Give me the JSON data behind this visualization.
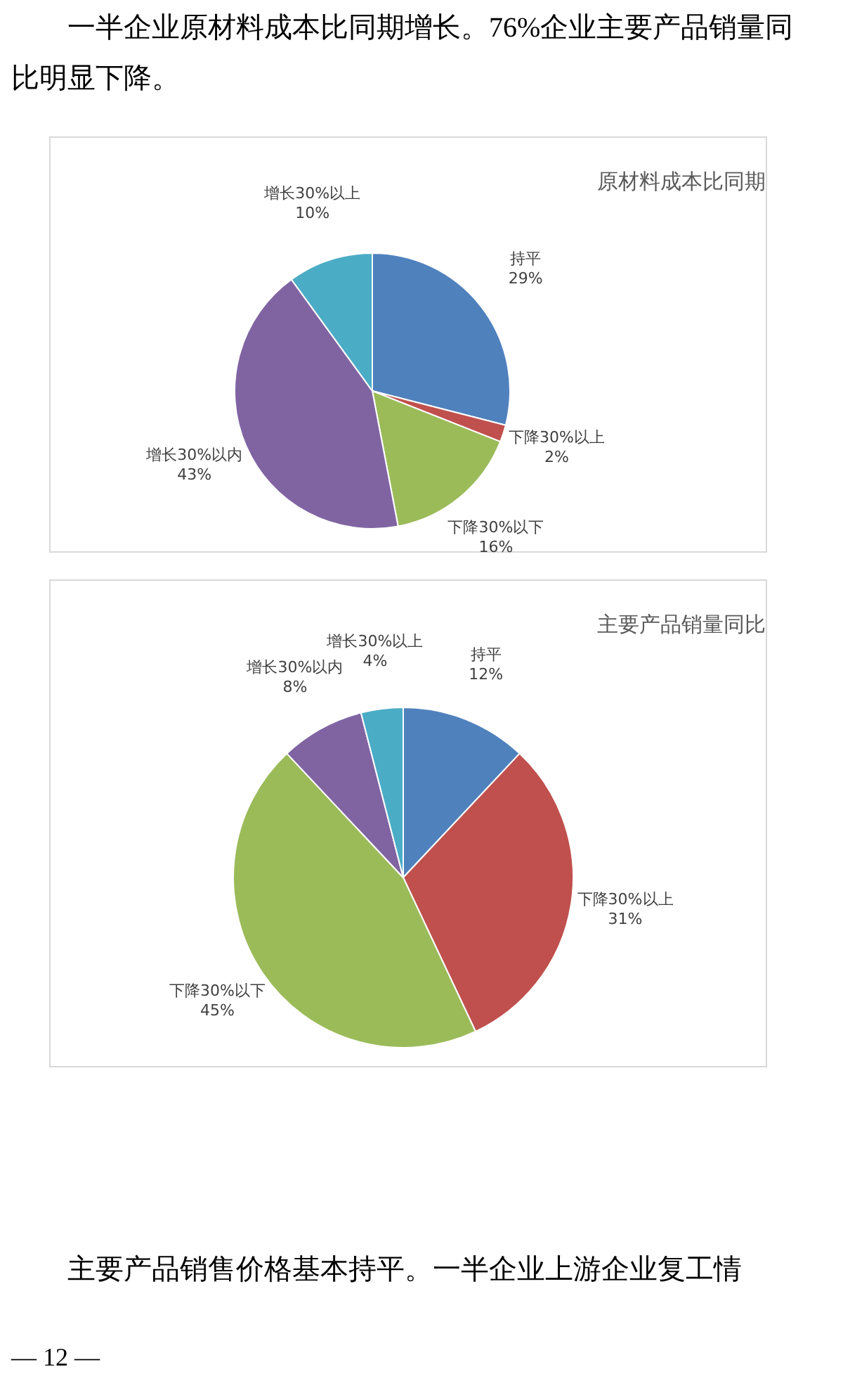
{
  "chart_data": [
    {
      "type": "pie",
      "title": "原材料成本比同期",
      "categories": [
        "持平",
        "下降30%以上",
        "下降30%以下",
        "增长30%以内",
        "增长30%以上"
      ],
      "values": [
        29,
        2,
        16,
        43,
        10
      ],
      "colors": [
        "#4f81bd",
        "#c0504d",
        "#9bbb59",
        "#8064a2",
        "#4bacc6"
      ],
      "value_labels": [
        "29%",
        "2%",
        "16%",
        "43%",
        "10%"
      ],
      "annotations": [
        "一半企业原材料成本比同期增长。76%企业主要产品销量同比明显下降。"
      ]
    },
    {
      "type": "pie",
      "title": "主要产品销量同比",
      "categories": [
        "持平",
        "下降30%以上",
        "下降30%以下",
        "增长30%以内",
        "增长30%以上"
      ],
      "values": [
        12,
        31,
        45,
        8,
        4
      ],
      "colors": [
        "#4f81bd",
        "#c0504d",
        "#9bbb59",
        "#8064a2",
        "#4bacc6"
      ],
      "value_labels": [
        "12%",
        "31%",
        "45%",
        "8%",
        "4%"
      ],
      "annotations": [
        "主要产品销售价格基本持平。一半企业上游企业复工情",
        "— 12 —"
      ]
    }
  ]
}
